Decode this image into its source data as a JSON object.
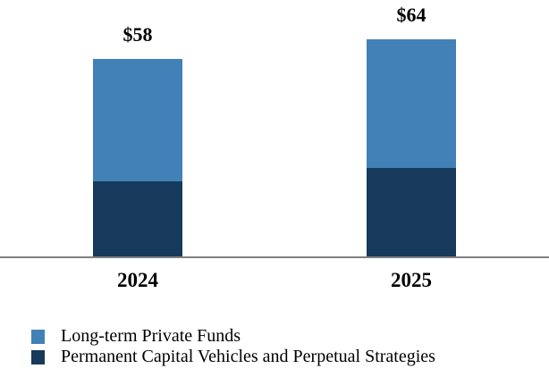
{
  "chart_data": {
    "type": "bar",
    "stacked": true,
    "title": "",
    "xlabel": "",
    "ylabel": "",
    "categories": [
      "2024",
      "2025"
    ],
    "series": [
      {
        "name": "Long-term Private Funds",
        "color": "#4181B7",
        "values": [
          36,
          38
        ]
      },
      {
        "name": "Permanent Capital Vehicles and Perpetual Strategies",
        "color": "#16395C",
        "values": [
          22,
          26
        ]
      }
    ],
    "totals": [
      58,
      64
    ],
    "total_labels": [
      "$58",
      "$64"
    ],
    "ylim": [
      0,
      70
    ],
    "grid": false,
    "legend_position": "bottom-left",
    "axis_line_color": "#808080",
    "background_color": "#FFFFFF"
  }
}
